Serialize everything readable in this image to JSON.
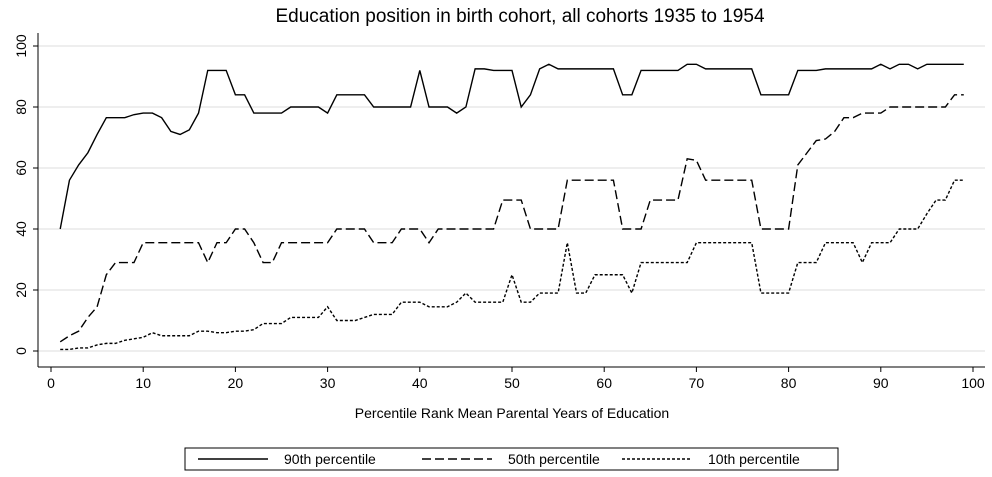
{
  "chart_data": {
    "type": "line",
    "title": "Education position in birth cohort, all cohorts 1935 to 1954",
    "x_label": "Percentile Rank Mean Parental Years of Education",
    "x": [
      1,
      2,
      3,
      4,
      5,
      6,
      7,
      8,
      9,
      10,
      11,
      12,
      13,
      14,
      15,
      16,
      17,
      18,
      19,
      20,
      21,
      22,
      23,
      24,
      25,
      26,
      27,
      28,
      29,
      30,
      31,
      32,
      33,
      34,
      35,
      36,
      37,
      38,
      39,
      40,
      41,
      42,
      43,
      44,
      45,
      46,
      47,
      48,
      49,
      50,
      51,
      52,
      53,
      54,
      55,
      56,
      57,
      58,
      59,
      60,
      61,
      62,
      63,
      64,
      65,
      66,
      67,
      68,
      69,
      70,
      71,
      72,
      73,
      74,
      75,
      76,
      77,
      78,
      79,
      80,
      81,
      82,
      83,
      84,
      85,
      86,
      87,
      88,
      89,
      90,
      91,
      92,
      93,
      94,
      95,
      96,
      97,
      98,
      99
    ],
    "series": [
      {
        "name": "90th percentile",
        "color": "#000000",
        "dash": "none",
        "values": [
          40,
          56,
          61,
          65,
          71,
          76.5,
          76.5,
          76.5,
          77.5,
          78,
          78,
          76.5,
          72,
          71,
          72.5,
          78,
          92,
          92,
          92,
          84,
          84,
          78,
          78,
          78,
          78,
          80,
          80,
          80,
          80,
          78,
          84,
          84,
          84,
          84,
          80,
          80,
          80,
          80,
          80,
          92,
          80,
          80,
          80,
          78,
          80,
          92.5,
          92.5,
          92,
          92,
          92,
          80,
          84,
          92.5,
          94,
          92.5,
          92.5,
          92.5,
          92.5,
          92.5,
          92.5,
          92.5,
          84,
          84,
          92,
          92,
          92,
          92,
          92,
          94,
          94,
          92.5,
          92.5,
          92.5,
          92.5,
          92.5,
          92.5,
          84,
          84,
          84,
          84,
          92,
          92,
          92,
          92.5,
          92.5,
          92.5,
          92.5,
          92.5,
          92.5,
          94,
          92.5,
          94,
          94,
          92.5,
          94,
          94,
          94,
          94,
          94
        ]
      },
      {
        "name": "50th percentile",
        "color": "#000000",
        "dash": "9,4",
        "values": [
          3,
          5,
          6.5,
          11,
          14.5,
          25,
          29,
          29,
          29,
          35.5,
          35.5,
          35.5,
          35.5,
          35.5,
          35.5,
          35.5,
          29,
          35.5,
          35.5,
          40,
          40,
          35.5,
          29,
          29,
          35.5,
          35.5,
          35.5,
          35.5,
          35.5,
          35.5,
          40,
          40,
          40,
          40,
          35.5,
          35.5,
          35.5,
          40,
          40,
          40,
          35.5,
          40,
          40,
          40,
          40,
          40,
          40,
          40,
          49.5,
          49.5,
          49.5,
          40,
          40,
          40,
          40,
          56,
          56,
          56,
          56,
          56,
          56,
          40,
          40,
          40,
          49.5,
          49.5,
          49.5,
          49.5,
          63,
          62.5,
          56,
          56,
          56,
          56,
          56,
          56,
          40,
          40,
          40,
          40,
          61,
          65,
          69,
          69.5,
          72,
          76.5,
          76.5,
          78,
          78,
          78,
          80,
          80,
          80,
          80,
          80,
          80,
          80,
          84,
          84
        ]
      },
      {
        "name": "10th percentile",
        "color": "#000000",
        "dash": "3,2",
        "values": [
          0.5,
          0.5,
          1,
          1,
          2,
          2.5,
          2.5,
          3.5,
          4,
          4.5,
          6,
          5,
          5,
          5,
          5,
          6.5,
          6.5,
          6,
          6,
          6.5,
          6.5,
          7,
          9,
          9,
          9,
          11,
          11,
          11,
          11,
          14.5,
          10,
          10,
          10,
          11,
          12,
          12,
          12,
          16,
          16,
          16,
          14.5,
          14.5,
          14.5,
          16,
          19,
          16,
          16,
          16,
          16,
          25,
          16,
          16,
          19,
          19,
          19,
          35.5,
          19,
          19,
          25,
          25,
          25,
          25,
          19,
          29,
          29,
          29,
          29,
          29,
          29,
          35.5,
          35.5,
          35.5,
          35.5,
          35.5,
          35.5,
          35.5,
          19,
          19,
          19,
          19,
          29,
          29,
          29,
          35.5,
          35.5,
          35.5,
          35.5,
          29,
          35.5,
          35.5,
          35.5,
          40,
          40,
          40,
          45,
          49.5,
          49.5,
          56,
          56
        ]
      }
    ],
    "xlim": [
      0,
      100
    ],
    "xticks": [
      0,
      10,
      20,
      30,
      40,
      50,
      60,
      70,
      80,
      90,
      100
    ],
    "ylim": [
      0,
      100
    ],
    "yticks": [
      0,
      20,
      40,
      60,
      80,
      100
    ],
    "grid": true,
    "legend": "bottom"
  }
}
